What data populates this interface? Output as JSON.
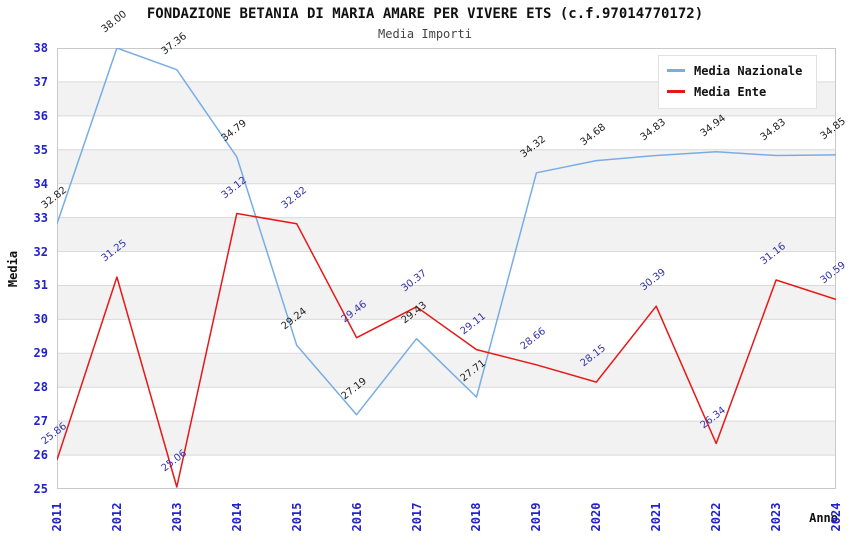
{
  "chart_data": {
    "type": "line",
    "title": "FONDAZIONE BETANIA DI MARIA AMARE PER VIVERE ETS (c.f.97014770172)",
    "subtitle": "Media Importi",
    "xlabel": "Anno",
    "ylabel": "Media",
    "ylim": [
      25,
      38
    ],
    "y_tick_step": 1,
    "grid": "horizontal-bands",
    "band_color": "#f2f2f2",
    "gridline_color": "#d9d9d9",
    "plot_border_color": "#c9c9c9",
    "tick_label_color": "#2222cc",
    "legend_position": "top-right",
    "categories": [
      "2011",
      "2012",
      "2013",
      "2014",
      "2015",
      "2016",
      "2017",
      "2018",
      "2019",
      "2020",
      "2021",
      "2022",
      "2023",
      "2024"
    ],
    "series": [
      {
        "name": "Media Nazionale",
        "color": "#78ade4",
        "label_color": "#222222",
        "values": [
          32.82,
          38.0,
          37.36,
          34.79,
          29.24,
          27.19,
          29.43,
          27.71,
          34.32,
          34.68,
          34.83,
          34.94,
          34.83,
          34.85
        ]
      },
      {
        "name": "Media Ente",
        "color": "#e81717",
        "label_color": "#3333aa",
        "values": [
          25.86,
          31.25,
          25.06,
          33.12,
          32.82,
          29.46,
          30.37,
          29.11,
          28.66,
          28.15,
          30.39,
          26.34,
          31.16,
          30.59
        ]
      }
    ]
  }
}
